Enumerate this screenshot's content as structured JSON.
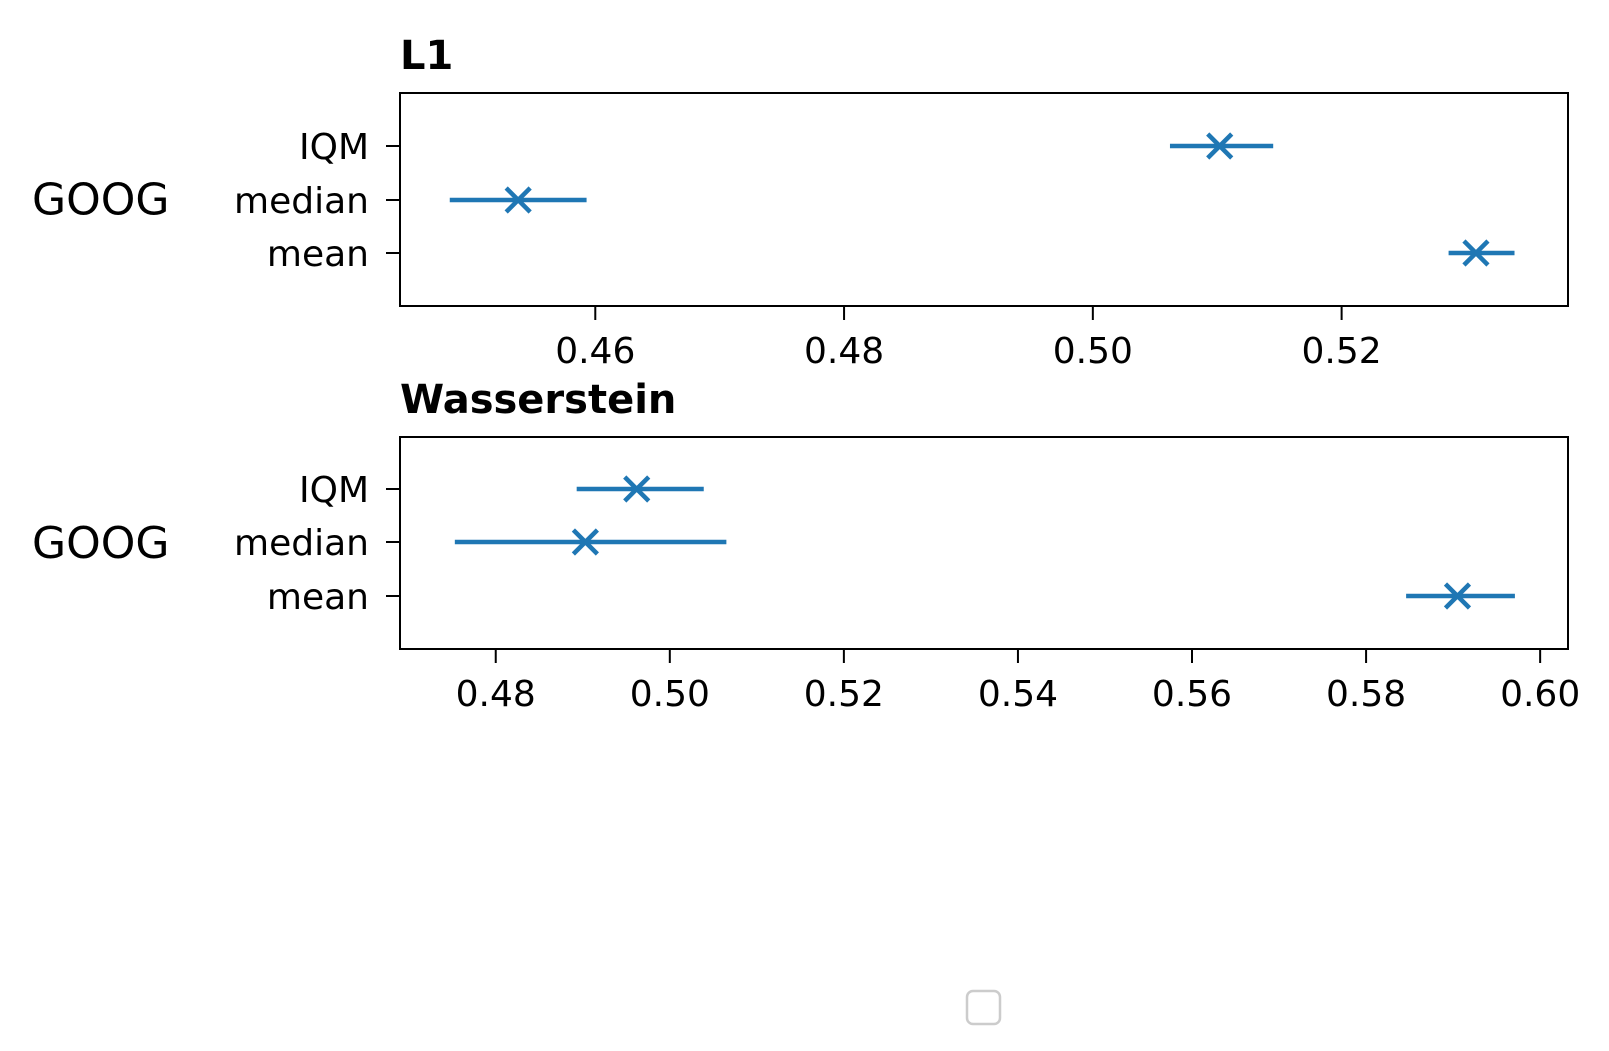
{
  "chart_data": [
    {
      "type": "scatter",
      "title": "L1",
      "group_label": "GOOG",
      "categories": [
        "IQM",
        "median",
        "mean"
      ],
      "series": [
        {
          "color": "#1f77b4",
          "marker": "x",
          "values": [
            0.5102,
            0.4538,
            0.5308
          ],
          "ci_low": [
            0.5062,
            0.4483,
            0.5286
          ],
          "ci_high": [
            0.5145,
            0.4593,
            0.5339
          ]
        }
      ],
      "xlim": [
        0.4443,
        0.5382
      ],
      "xticks": [
        0.46,
        0.48,
        0.5,
        0.52
      ],
      "xtick_labels": [
        "0.46",
        "0.48",
        "0.50",
        "0.52"
      ],
      "grid": false
    },
    {
      "type": "scatter",
      "title": "Wasserstein",
      "group_label": "GOOG",
      "categories": [
        "IQM",
        "median",
        "mean"
      ],
      "series": [
        {
          "color": "#1f77b4",
          "marker": "x",
          "values": [
            0.4962,
            0.4903,
            0.5905
          ],
          "ci_low": [
            0.4893,
            0.4753,
            0.5846
          ],
          "ci_high": [
            0.5039,
            0.5065,
            0.5971
          ]
        }
      ],
      "xlim": [
        0.469,
        0.6032
      ],
      "xticks": [
        0.48,
        0.5,
        0.52,
        0.54,
        0.56,
        0.58,
        0.6
      ],
      "xtick_labels": [
        "0.48",
        "0.50",
        "0.52",
        "0.54",
        "0.56",
        "0.58",
        "0.60"
      ],
      "grid": false
    }
  ],
  "legend": {
    "placement": "bottom-center",
    "entries": []
  }
}
